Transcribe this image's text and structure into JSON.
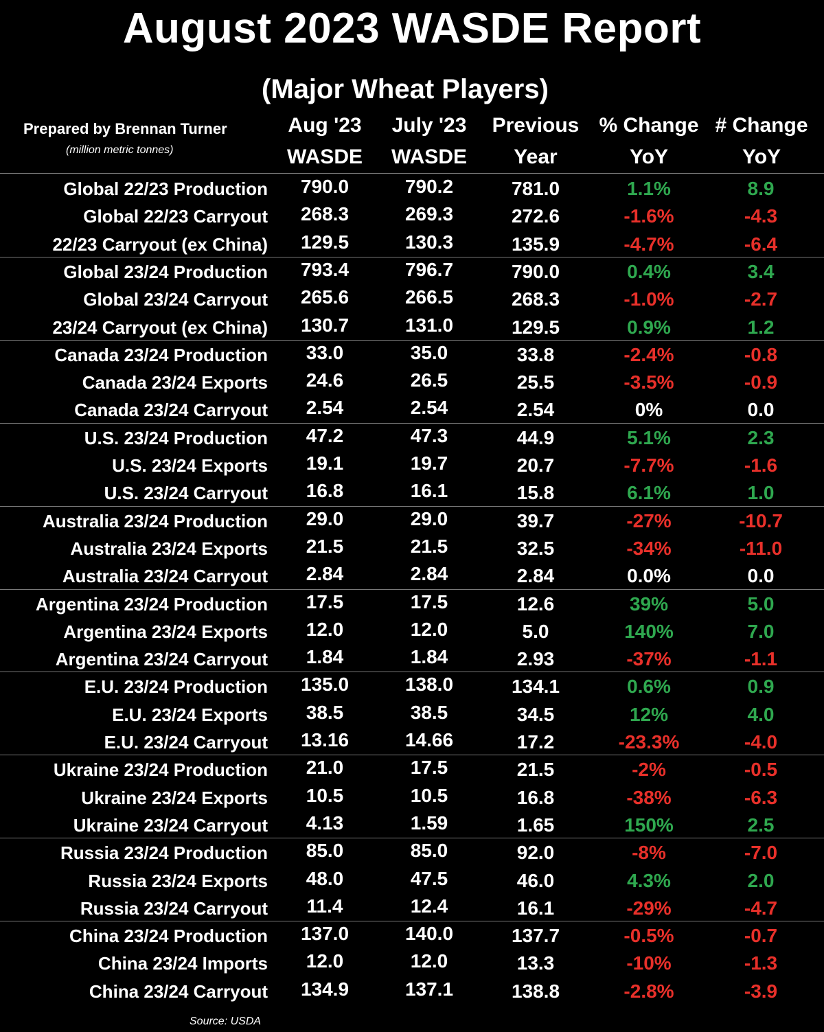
{
  "chart_data": {
    "type": "table",
    "title": "August 2023 WASDE Report",
    "subtitle": "(Major Wheat Players)",
    "prepared_by": "Prepared by Brennan Turner",
    "units": "(million metric tonnes)",
    "source": "Source: USDA",
    "columns": [
      {
        "line1": "Aug '23",
        "line2": "WASDE"
      },
      {
        "line1": "July '23",
        "line2": "WASDE"
      },
      {
        "line1": "Previous",
        "line2": "Year"
      },
      {
        "line1": "% Change",
        "line2": "YoY"
      },
      {
        "line1": "# Change",
        "line2": "YoY"
      }
    ],
    "rows": [
      {
        "label": "Global 22/23 Production",
        "aug": "790.0",
        "july": "790.2",
        "prev": "781.0",
        "pct": "1.1%",
        "chg": "8.9",
        "dir": "pos"
      },
      {
        "label": "Global 22/23 Carryout",
        "aug": "268.3",
        "july": "269.3",
        "prev": "272.6",
        "pct": "-1.6%",
        "chg": "-4.3",
        "dir": "neg"
      },
      {
        "label": "22/23 Carryout (ex China)",
        "aug": "129.5",
        "july": "130.3",
        "prev": "135.9",
        "pct": "-4.7%",
        "chg": "-6.4",
        "dir": "neg"
      },
      {
        "label": "Global 23/24 Production",
        "aug": "793.4",
        "july": "796.7",
        "prev": "790.0",
        "pct": "0.4%",
        "chg": "3.4",
        "dir": "pos"
      },
      {
        "label": "Global 23/24 Carryout",
        "aug": "265.6",
        "july": "266.5",
        "prev": "268.3",
        "pct": "-1.0%",
        "chg": "-2.7",
        "dir": "neg"
      },
      {
        "label": "23/24 Carryout (ex China)",
        "aug": "130.7",
        "july": "131.0",
        "prev": "129.5",
        "pct": "0.9%",
        "chg": "1.2",
        "dir": "pos"
      },
      {
        "label": "Canada 23/24 Production",
        "aug": "33.0",
        "july": "35.0",
        "prev": "33.8",
        "pct": "-2.4%",
        "chg": "-0.8",
        "dir": "neg"
      },
      {
        "label": "Canada 23/24 Exports",
        "aug": "24.6",
        "july": "26.5",
        "prev": "25.5",
        "pct": "-3.5%",
        "chg": "-0.9",
        "dir": "neg"
      },
      {
        "label": "Canada 23/24 Carryout",
        "aug": "2.54",
        "july": "2.54",
        "prev": "2.54",
        "pct": "0%",
        "chg": "0.0",
        "dir": "neu"
      },
      {
        "label": "U.S. 23/24 Production",
        "aug": "47.2",
        "july": "47.3",
        "prev": "44.9",
        "pct": "5.1%",
        "chg": "2.3",
        "dir": "pos"
      },
      {
        "label": "U.S. 23/24 Exports",
        "aug": "19.1",
        "july": "19.7",
        "prev": "20.7",
        "pct": "-7.7%",
        "chg": "-1.6",
        "dir": "neg"
      },
      {
        "label": "U.S. 23/24 Carryout",
        "aug": "16.8",
        "july": "16.1",
        "prev": "15.8",
        "pct": "6.1%",
        "chg": "1.0",
        "dir": "pos"
      },
      {
        "label": "Australia 23/24 Production",
        "aug": "29.0",
        "july": "29.0",
        "prev": "39.7",
        "pct": "-27%",
        "chg": "-10.7",
        "dir": "neg"
      },
      {
        "label": "Australia 23/24 Exports",
        "aug": "21.5",
        "july": "21.5",
        "prev": "32.5",
        "pct": "-34%",
        "chg": "-11.0",
        "dir": "neg"
      },
      {
        "label": "Australia 23/24 Carryout",
        "aug": "2.84",
        "july": "2.84",
        "prev": "2.84",
        "pct": "0.0%",
        "chg": "0.0",
        "dir": "neu"
      },
      {
        "label": "Argentina 23/24 Production",
        "aug": "17.5",
        "july": "17.5",
        "prev": "12.6",
        "pct": "39%",
        "chg": "5.0",
        "dir": "pos"
      },
      {
        "label": "Argentina 23/24 Exports",
        "aug": "12.0",
        "july": "12.0",
        "prev": "5.0",
        "pct": "140%",
        "chg": "7.0",
        "dir": "pos"
      },
      {
        "label": "Argentina 23/24 Carryout",
        "aug": "1.84",
        "july": "1.84",
        "prev": "2.93",
        "pct": "-37%",
        "chg": "-1.1",
        "dir": "neg"
      },
      {
        "label": "E.U. 23/24 Production",
        "aug": "135.0",
        "july": "138.0",
        "prev": "134.1",
        "pct": "0.6%",
        "chg": "0.9",
        "dir": "pos"
      },
      {
        "label": "E.U. 23/24 Exports",
        "aug": "38.5",
        "july": "38.5",
        "prev": "34.5",
        "pct": "12%",
        "chg": "4.0",
        "dir": "pos"
      },
      {
        "label": "E.U. 23/24 Carryout",
        "aug": "13.16",
        "july": "14.66",
        "prev": "17.2",
        "pct": "-23.3%",
        "chg": "-4.0",
        "dir": "neg"
      },
      {
        "label": "Ukraine 23/24 Production",
        "aug": "21.0",
        "july": "17.5",
        "prev": "21.5",
        "pct": "-2%",
        "chg": "-0.5",
        "dir": "neg"
      },
      {
        "label": "Ukraine 23/24 Exports",
        "aug": "10.5",
        "july": "10.5",
        "prev": "16.8",
        "pct": "-38%",
        "chg": "-6.3",
        "dir": "neg"
      },
      {
        "label": "Ukraine 23/24 Carryout",
        "aug": "4.13",
        "july": "1.59",
        "prev": "1.65",
        "pct": "150%",
        "chg": "2.5",
        "dir": "pos"
      },
      {
        "label": "Russia 23/24 Production",
        "aug": "85.0",
        "july": "85.0",
        "prev": "92.0",
        "pct": "-8%",
        "chg": "-7.0",
        "dir": "neg"
      },
      {
        "label": "Russia 23/24 Exports",
        "aug": "48.0",
        "july": "47.5",
        "prev": "46.0",
        "pct": "4.3%",
        "chg": "2.0",
        "dir": "pos"
      },
      {
        "label": "Russia 23/24 Carryout",
        "aug": "11.4",
        "july": "12.4",
        "prev": "16.1",
        "pct": "-29%",
        "chg": "-4.7",
        "dir": "neg"
      },
      {
        "label": "China 23/24 Production",
        "aug": "137.0",
        "july": "140.0",
        "prev": "137.7",
        "pct": "-0.5%",
        "chg": "-0.7",
        "dir": "neg"
      },
      {
        "label": "China 23/24 Imports",
        "aug": "12.0",
        "july": "12.0",
        "prev": "13.3",
        "pct": "-10%",
        "chg": "-1.3",
        "dir": "neg"
      },
      {
        "label": "China 23/24 Carryout",
        "aug": "134.9",
        "july": "137.1",
        "prev": "138.8",
        "pct": "-2.8%",
        "chg": "-3.9",
        "dir": "neg"
      }
    ],
    "colors": {
      "positive": "#2fa84f",
      "negative": "#e8302a",
      "neutral": "#ffffff",
      "background": "#000000"
    }
  }
}
